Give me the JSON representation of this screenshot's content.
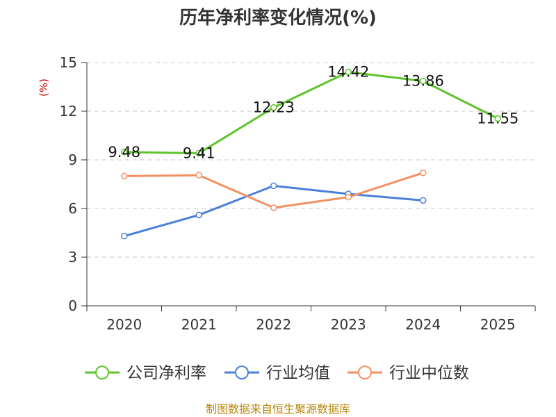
{
  "chart_data": {
    "type": "line",
    "title": "历年净利率变化情况(%)",
    "ylabel": "(%)",
    "xlabel": "",
    "categories": [
      "2020",
      "2021",
      "2022",
      "2023",
      "2024",
      "2025"
    ],
    "yticks": [
      "0",
      "3",
      "6",
      "9",
      "12",
      "15"
    ],
    "ylim": [
      0,
      15
    ],
    "grid": true,
    "legend_position": "bottom",
    "series": [
      {
        "name": "公司净利率",
        "color": "#5cc52b",
        "values": [
          9.48,
          9.41,
          12.23,
          14.42,
          13.86,
          11.55
        ],
        "labels": [
          "9.48",
          "9.41",
          "12.23",
          "14.42",
          "13.86",
          "11.55"
        ]
      },
      {
        "name": "行业均值",
        "color": "#4a7fdc",
        "values": [
          4.3,
          5.6,
          7.4,
          6.9,
          6.5,
          null
        ]
      },
      {
        "name": "行业中位数",
        "color": "#f39062",
        "values": [
          8.0,
          8.05,
          6.05,
          6.7,
          8.2,
          null
        ]
      }
    ]
  },
  "footer": {
    "source": "制图数据来自恒生聚源数据库"
  }
}
